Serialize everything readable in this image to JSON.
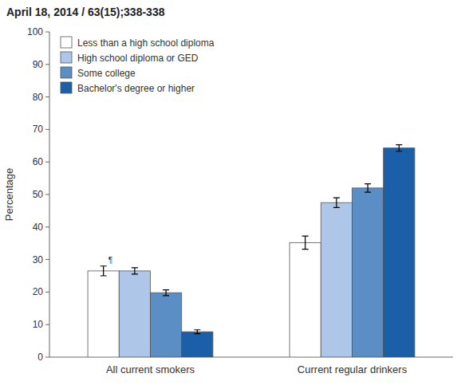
{
  "chart_data": {
    "type": "bar",
    "title": "April 18, 2014 / 63(15);338-338",
    "categories": [
      "All current smokers",
      "Current regular drinkers"
    ],
    "series": [
      {
        "name": "Less than a high school diploma",
        "color": "#ffffff",
        "values": [
          26.5,
          35.2
        ],
        "errors": [
          1.5,
          2.0
        ]
      },
      {
        "name": "High school diploma or GED",
        "color": "#aec6e8",
        "values": [
          26.5,
          47.5
        ],
        "errors": [
          1.0,
          1.5
        ]
      },
      {
        "name": "Some college",
        "color": "#5b8ec4",
        "values": [
          19.8,
          52.0
        ],
        "errors": [
          0.9,
          1.3
        ]
      },
      {
        "name": "Bachelor's degree or higher",
        "color": "#1a5fa8",
        "values": [
          7.8,
          64.3
        ],
        "errors": [
          0.6,
          1.0
        ]
      }
    ],
    "ylabel": "Percentage",
    "ylim": [
      0,
      100
    ],
    "yticks": [
      0,
      10,
      20,
      30,
      40,
      50,
      60,
      70,
      80,
      90,
      100
    ],
    "grid": false,
    "legend": "upper left",
    "annotations": [
      "¶"
    ]
  }
}
